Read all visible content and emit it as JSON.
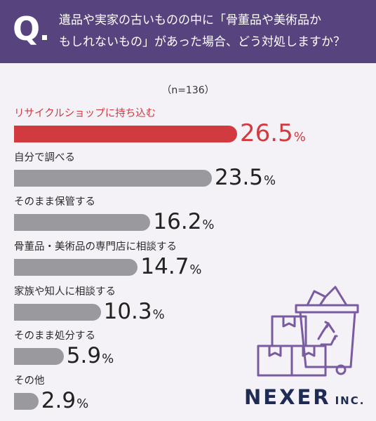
{
  "question": {
    "mark": "Q",
    "line1": "遺品や実家の古いものの中に「骨董品や美術品か",
    "line2": "もしれないもの」があった場合、どう対処しますか？"
  },
  "sample": "（n=136）",
  "percent_sign": "%",
  "colors": {
    "header_bg": "#57437e",
    "highlight": "#d13b40",
    "bar_gray": "#9a9a9e",
    "background": "#f4f1f7",
    "logo": "#1d2b55",
    "icon_stroke": "#7a5aa0"
  },
  "chart_data": {
    "type": "bar",
    "orientation": "horizontal",
    "categories": [
      "リサイクルショップに持ち込む",
      "自分で調べる",
      "そのまま保管する",
      "骨董品・美術品の専門店に相談する",
      "家族や知人に相談する",
      "そのまま処分する",
      "その他"
    ],
    "values": [
      26.5,
      23.5,
      16.2,
      14.7,
      10.3,
      5.9,
      2.9
    ],
    "value_labels": [
      "26.5",
      "23.5",
      "16.2",
      "14.7",
      "10.3",
      "5.9",
      "2.9"
    ],
    "unit": "%",
    "highlight_index": 0,
    "title": "",
    "xlabel": "",
    "ylabel": ""
  },
  "logo": {
    "name": "NEXER",
    "suffix": "INC."
  },
  "illustration": {
    "icon": "recycle-bin-with-boxes-icon"
  }
}
